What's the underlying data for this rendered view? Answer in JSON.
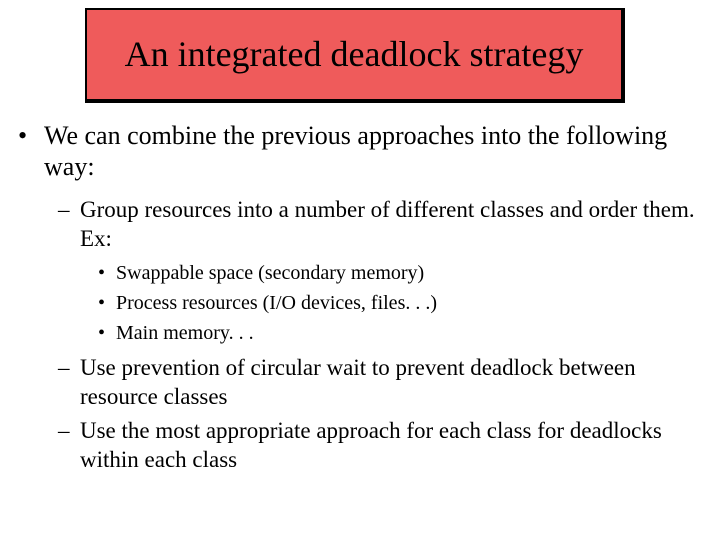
{
  "slide": {
    "title": "An integrated deadlock strategy",
    "title_bg": "#ef5b5b",
    "title_fontsize": 36,
    "body_fontsize_l1": 26,
    "body_fontsize_l2": 23,
    "body_fontsize_l3": 20,
    "background_color": "#ffffff",
    "text_color": "#000000",
    "bullets": {
      "l1_text": "We can combine the previous approaches into the following way:",
      "l2_items": [
        {
          "text": "Group resources into a number of different classes and order them. Ex:",
          "sub": [
            "Swappable space (secondary memory)",
            "Process resources (I/O devices, files. . .)",
            "Main memory. . ."
          ]
        },
        {
          "text": "Use prevention of circular wait to prevent deadlock between resource classes",
          "sub": []
        },
        {
          "text": "Use the most appropriate approach for each class for deadlocks within each class",
          "sub": []
        }
      ]
    }
  }
}
